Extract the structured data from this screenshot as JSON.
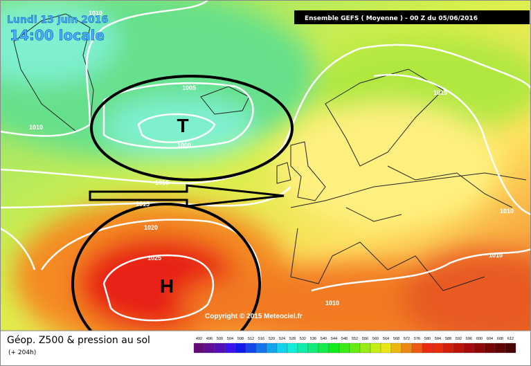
{
  "header": {
    "date": "Lundi 13 juin 2016",
    "time": "14:00 locale",
    "run": "Ensemble GEFS  ( Moyenne )  -  00 Z du 05/06/2016"
  },
  "map": {
    "isobars": [
      "1010",
      "1005",
      "1000",
      "1010",
      "1010",
      "1015",
      "1020",
      "1025",
      "1015",
      "1010",
      "1010",
      "1010"
    ],
    "low": "T",
    "high": "H",
    "copyright": "Copyright © 2015 Meteociel.fr"
  },
  "footer": {
    "title": "Géop. Z500 & pression au sol",
    "lead": "(+ 204h)",
    "scale": [
      492,
      496,
      500,
      504,
      508,
      512,
      516,
      520,
      524,
      528,
      532,
      536,
      540,
      544,
      548,
      552,
      556,
      560,
      564,
      568,
      572,
      576,
      580,
      584,
      588,
      592,
      596,
      600,
      604,
      608,
      612
    ]
  }
}
